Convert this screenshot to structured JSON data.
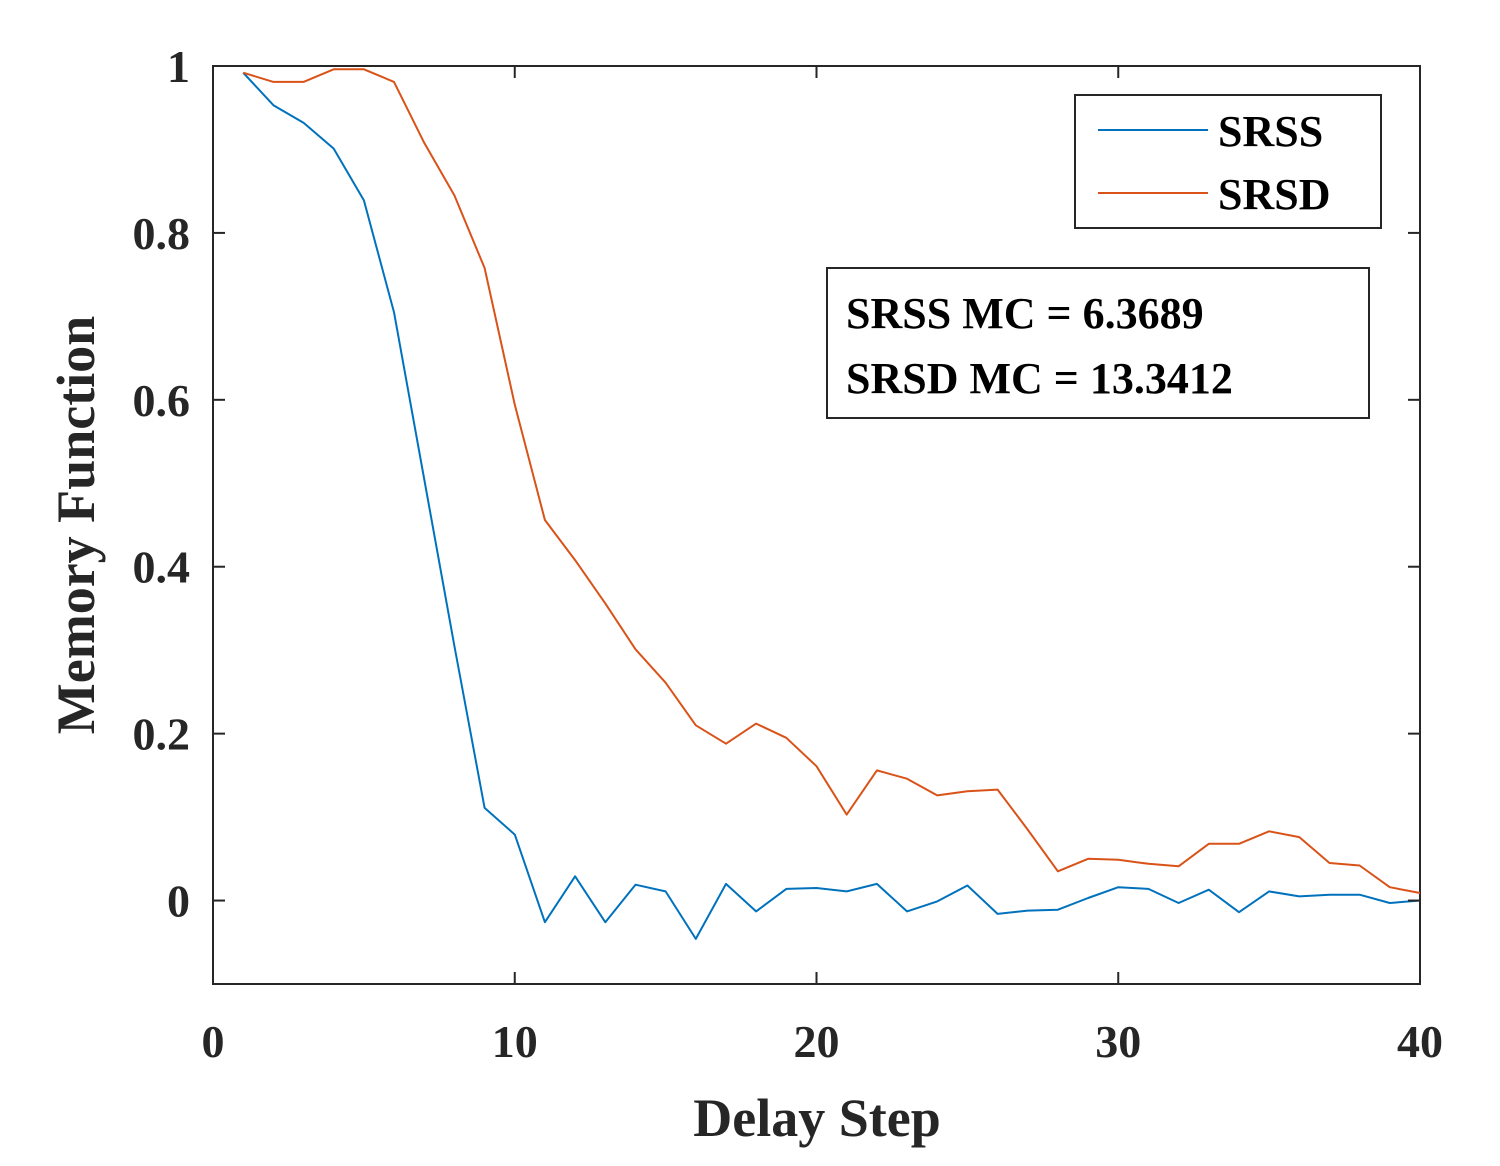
{
  "chart_data": {
    "type": "line",
    "title": "",
    "xlabel": "Delay Step",
    "ylabel": "Memory Function",
    "xlim": [
      0,
      40
    ],
    "ylim": [
      -0.1,
      1
    ],
    "xticks": [
      0,
      10,
      20,
      30,
      40
    ],
    "xtick_labels": [
      "0",
      "10",
      "20",
      "30",
      "40"
    ],
    "yticks": [
      0,
      0.2,
      0.4,
      0.6,
      0.8,
      1
    ],
    "ytick_labels": [
      "0",
      "0.2",
      "0.4",
      "0.6",
      "0.8",
      "1"
    ],
    "grid": false,
    "legend_position": "top-right",
    "x": [
      1,
      2,
      3,
      4,
      5,
      6,
      7,
      8,
      9,
      10,
      11,
      12,
      13,
      14,
      15,
      16,
      17,
      18,
      19,
      20,
      21,
      22,
      23,
      24,
      25,
      26,
      27,
      28,
      29,
      30,
      31,
      32,
      33,
      34,
      35,
      36,
      37,
      38,
      39,
      40
    ],
    "series": [
      {
        "name": "SRSS",
        "color": "#0072BD",
        "values": [
          0.992,
          0.953,
          0.932,
          0.901,
          0.839,
          0.705,
          0.505,
          0.305,
          0.111,
          0.079,
          -0.026,
          0.029,
          -0.026,
          0.019,
          0.011,
          -0.046,
          0.02,
          -0.013,
          0.014,
          0.015,
          0.011,
          0.02,
          -0.013,
          -0.001,
          0.018,
          -0.016,
          -0.012,
          -0.011,
          0.003,
          0.016,
          0.014,
          -0.003,
          0.013,
          -0.014,
          0.011,
          0.005,
          0.007,
          0.007,
          -0.003,
          0.0
        ]
      },
      {
        "name": "SRSD",
        "color": "#D95319",
        "values": [
          0.992,
          0.981,
          0.981,
          0.996,
          0.996,
          0.981,
          0.908,
          0.845,
          0.758,
          0.594,
          0.456,
          0.408,
          0.356,
          0.301,
          0.261,
          0.21,
          0.188,
          0.212,
          0.195,
          0.161,
          0.103,
          0.156,
          0.146,
          0.126,
          0.131,
          0.133,
          0.085,
          0.035,
          0.05,
          0.049,
          0.044,
          0.041,
          0.068,
          0.068,
          0.083,
          0.076,
          0.045,
          0.042,
          0.016,
          0.009
        ]
      }
    ],
    "annotation": {
      "lines": [
        "SRSS MC = 6.3689",
        "SRSD MC = 13.3412"
      ]
    }
  }
}
